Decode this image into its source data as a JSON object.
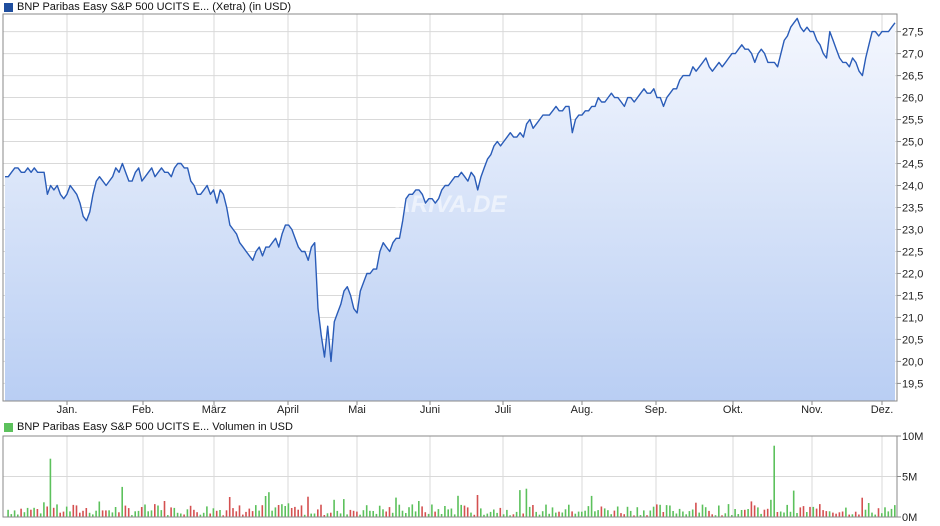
{
  "colors": {
    "price_line": "#2a5cb8",
    "price_swatch": "#1f4e9e",
    "area_top": "#f4f7fe",
    "area_bottom": "#b9cef3",
    "grid": "#d9d9d9",
    "axis": "#8a8a8a",
    "volume_up": "#5cc15c",
    "volume_down": "#d45050",
    "volume_swatch": "#5cc15c"
  },
  "chart_data": [
    {
      "type": "line",
      "title": "BNP Paribas Easy S&P 500 UCITS E... (Xetra) (in USD)",
      "watermark": "ARIVA.DE",
      "x_tick_labels": [
        "Jan.",
        "Feb.",
        "März",
        "April",
        "Mai",
        "Juni",
        "Juli",
        "Aug.",
        "Sep.",
        "Okt.",
        "Nov.",
        "Dez."
      ],
      "y_tick_labels": [
        "19,5",
        "20,0",
        "20,5",
        "21,0",
        "21,5",
        "22,0",
        "22,5",
        "23,0",
        "23,5",
        "24,0",
        "24,5",
        "25,0",
        "25,5",
        "26,0",
        "26,5",
        "27,0",
        "27,5"
      ],
      "ylim": [
        19.1,
        27.9
      ],
      "grid": true,
      "series": [
        {
          "values": [
            24.2,
            24.2,
            24.3,
            24.4,
            24.4,
            24.3,
            24.3,
            24.4,
            24.3,
            24.4,
            24.3,
            24.3,
            24.3,
            23.8,
            24.0,
            23.9,
            24.0,
            23.8,
            23.7,
            23.8,
            24.0,
            23.9,
            23.8,
            23.6,
            23.3,
            23.2,
            23.4,
            23.8,
            24.1,
            24.2,
            24.1,
            24.0,
            24.1,
            24.2,
            24.4,
            24.3,
            24.5,
            24.3,
            24.1,
            24.1,
            24.3,
            24.4,
            24.1,
            24.2,
            24.3,
            24.4,
            24.2,
            24.3,
            24.4,
            24.3,
            24.3,
            24.2,
            24.4,
            24.5,
            24.5,
            24.4,
            24.4,
            24.1,
            24.0,
            23.8,
            23.8,
            23.9,
            24.0,
            23.8,
            23.9,
            23.6,
            23.9,
            23.8,
            23.5,
            23.1,
            23.0,
            22.9,
            22.7,
            22.6,
            22.5,
            22.4,
            22.3,
            22.5,
            22.6,
            22.4,
            22.6,
            22.6,
            22.7,
            22.8,
            22.6,
            22.9,
            23.1,
            23.1,
            23.0,
            22.8,
            22.6,
            22.5,
            22.5,
            22.3,
            22.6,
            22.7,
            21.2,
            20.6,
            20.1,
            20.8,
            20.0,
            20.9,
            21.1,
            21.3,
            21.6,
            21.7,
            21.5,
            21.2,
            21.1,
            21.6,
            21.8,
            22.0,
            22.0,
            22.1,
            22.1,
            22.5,
            22.7,
            22.6,
            22.5,
            22.7,
            22.8,
            22.8,
            23.2,
            23.7,
            23.8,
            23.8,
            23.9,
            23.9,
            23.8,
            23.6,
            23.7,
            23.7,
            23.6,
            23.7,
            23.9,
            24.0,
            24.0,
            24.1,
            24.2,
            24.2,
            24.3,
            24.2,
            24.1,
            24.3,
            24.2,
            23.9,
            24.2,
            24.4,
            24.6,
            24.7,
            24.9,
            25.0,
            24.9,
            25.0,
            25.1,
            25.2,
            25.1,
            25.1,
            25.2,
            25.1,
            25.4,
            25.5,
            25.3,
            25.4,
            25.5,
            25.6,
            25.6,
            25.6,
            25.7,
            25.8,
            25.7,
            25.7,
            25.8,
            25.8,
            25.2,
            25.5,
            25.6,
            25.6,
            25.7,
            25.7,
            25.8,
            25.8,
            26.0,
            25.9,
            25.9,
            26.0,
            26.1,
            26.0,
            26.0,
            25.9,
            25.8,
            26.0,
            26.0,
            25.9,
            26.0,
            26.1,
            26.2,
            26.1,
            26.1,
            26.2,
            26.0,
            26.0,
            25.8,
            26.0,
            26.1,
            26.2,
            26.2,
            26.4,
            26.5,
            26.5,
            26.5,
            26.7,
            26.6,
            26.7,
            26.8,
            26.9,
            26.7,
            26.6,
            26.7,
            26.8,
            26.7,
            26.8,
            26.9,
            27.0,
            27.0,
            27.1,
            27.2,
            27.1,
            27.1,
            27.0,
            26.8,
            27.0,
            27.1,
            27.0,
            26.8,
            26.8,
            26.8,
            26.7,
            27.0,
            27.3,
            27.4,
            27.6,
            27.7,
            27.8,
            27.6,
            27.5,
            27.6,
            27.5,
            27.5,
            27.3,
            27.2,
            27.0,
            26.9,
            27.5,
            27.3,
            27.1,
            26.9,
            26.8,
            26.8,
            26.7,
            26.9,
            26.8,
            26.6,
            26.5,
            26.9,
            27.2,
            27.5,
            27.5,
            27.4,
            27.5,
            27.5,
            27.5,
            27.6,
            27.7
          ]
        }
      ]
    },
    {
      "type": "bar",
      "title": "BNP Paribas Easy S&P 500 UCITS E... Volumen in USD",
      "y_tick_labels": [
        "10M",
        "5M",
        "0M"
      ],
      "ylim": [
        0,
        10
      ]
    }
  ]
}
